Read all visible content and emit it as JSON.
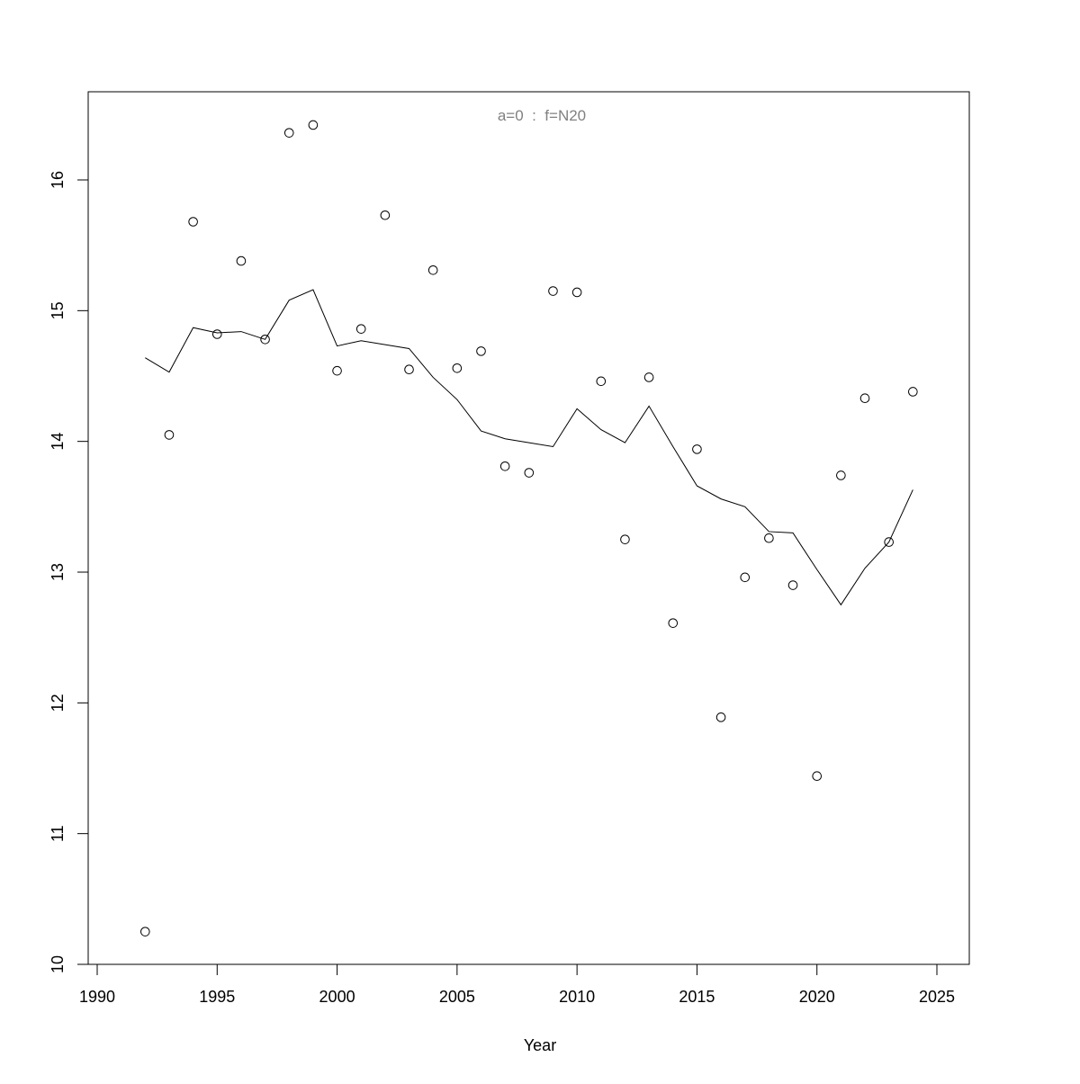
{
  "chart_data": {
    "type": "scatter",
    "title": "a=0  :  f=N20",
    "xlabel": "Year",
    "ylabel": "",
    "xlim": [
      1990,
      2025
    ],
    "ylim": [
      10,
      16.6
    ],
    "xticks": [
      1990,
      1995,
      2000,
      2005,
      2010,
      2015,
      2020,
      2025
    ],
    "yticks": [
      10,
      11,
      12,
      13,
      14,
      15,
      16
    ],
    "grid": false,
    "colors": {
      "title": "#808080",
      "marks": "#000000"
    },
    "x": [
      1992,
      1993,
      1994,
      1995,
      1996,
      1997,
      1998,
      1999,
      2000,
      2001,
      2002,
      2003,
      2004,
      2005,
      2006,
      2007,
      2008,
      2009,
      2010,
      2011,
      2012,
      2013,
      2014,
      2015,
      2016,
      2017,
      2018,
      2019,
      2020,
      2021,
      2022,
      2023,
      2024
    ],
    "series": [
      {
        "type": "points",
        "values": [
          10.25,
          14.05,
          15.68,
          14.82,
          15.38,
          14.78,
          16.36,
          16.42,
          14.54,
          14.86,
          15.73,
          14.55,
          15.31,
          14.56,
          14.69,
          13.81,
          13.76,
          15.15,
          15.14,
          14.46,
          13.25,
          14.49,
          12.61,
          13.94,
          11.89,
          12.96,
          13.26,
          12.9,
          11.44,
          13.74,
          14.33,
          13.23,
          14.38
        ]
      },
      {
        "type": "line",
        "values": [
          14.64,
          14.53,
          14.87,
          14.83,
          14.84,
          14.78,
          15.08,
          15.16,
          14.73,
          14.77,
          14.74,
          14.71,
          14.49,
          14.32,
          14.08,
          14.02,
          13.99,
          13.96,
          14.25,
          14.09,
          13.99,
          14.27,
          13.96,
          13.66,
          13.56,
          13.5,
          13.31,
          13.3,
          13.02,
          12.75,
          13.03,
          13.23,
          13.63
        ]
      }
    ]
  }
}
